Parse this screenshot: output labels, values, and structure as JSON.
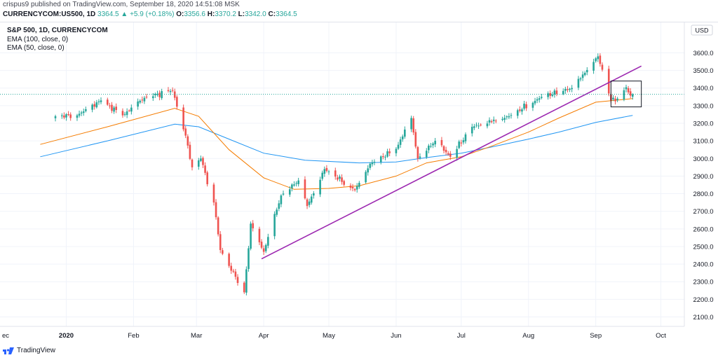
{
  "header": {
    "publish_line": "crispus9 published on TradingView.com, September 18, 2020 14:51:08 MSK",
    "symbol": "CURRENCYCOM:US500, 1D",
    "last": "3364.5",
    "change_arrow": "▲",
    "change": "+5.9 (+0.18%)",
    "o_label": "O:",
    "o_value": "3356.6",
    "h_label": "H:",
    "h_value": "3370.2",
    "l_label": "L:",
    "l_value": "3342.0",
    "c_label": "C:",
    "c_value": "3364.5"
  },
  "legend": {
    "title": "S&P 500, 1D, CURRENCYCOM",
    "ema1": "EMA (100, close, 0)",
    "ema2": "EMA (50, close, 0)"
  },
  "footer": {
    "brand": "TradingView"
  },
  "colors": {
    "up": "#26a69a",
    "down": "#ef5350",
    "ema100": "#2196f3",
    "ema50": "#f57c00",
    "trendline": "#9c27b0",
    "last_price_line": "#26a69a"
  },
  "chart_data": {
    "type": "candlestick",
    "title": "S&P 500, 1D, CURRENCYCOM",
    "currency": "USD",
    "x_ticks": [
      "ec",
      "2020",
      "Feb",
      "Mar",
      "Apr",
      "May",
      "Jun",
      "Jul",
      "Aug",
      "Sep",
      "Oct"
    ],
    "y_ticks": [
      2100,
      2200,
      2300,
      2400,
      2500,
      2600,
      2700,
      2800,
      2900,
      3000,
      3100,
      3200,
      3300,
      3400,
      3500,
      3600
    ],
    "ylim": [
      2060,
      3670
    ],
    "last_price": 3364.5,
    "grid": true,
    "series": [
      {
        "name": "S&P 500",
        "kind": "candles",
        "close_anchors": [
          [
            "2019-12-27",
            3240
          ],
          [
            "2020-01-06",
            3245
          ],
          [
            "2020-01-17",
            3330
          ],
          [
            "2020-01-27",
            3245
          ],
          [
            "2020-02-06",
            3345
          ],
          [
            "2020-02-19",
            3386
          ],
          [
            "2020-02-25",
            3130
          ],
          [
            "2020-02-28",
            2950
          ],
          [
            "2020-03-03",
            3000
          ],
          [
            "2020-03-09",
            2750
          ],
          [
            "2020-03-12",
            2480
          ],
          [
            "2020-03-16",
            2390
          ],
          [
            "2020-03-23",
            2240
          ],
          [
            "2020-03-26",
            2630
          ],
          [
            "2020-04-01",
            2470
          ],
          [
            "2020-04-09",
            2790
          ],
          [
            "2020-04-17",
            2875
          ],
          [
            "2020-04-21",
            2730
          ],
          [
            "2020-04-29",
            2940
          ],
          [
            "2020-05-13",
            2820
          ],
          [
            "2020-05-20",
            2970
          ],
          [
            "2020-06-01",
            3055
          ],
          [
            "2020-06-08",
            3230
          ],
          [
            "2020-06-11",
            3000
          ],
          [
            "2020-06-19",
            3100
          ],
          [
            "2020-06-26",
            3010
          ],
          [
            "2020-07-06",
            3180
          ],
          [
            "2020-07-23",
            3240
          ],
          [
            "2020-08-07",
            3350
          ],
          [
            "2020-08-21",
            3400
          ],
          [
            "2020-09-02",
            3580
          ],
          [
            "2020-09-08",
            3330
          ],
          [
            "2020-09-11",
            3340
          ],
          [
            "2020-09-15",
            3405
          ],
          [
            "2020-09-17",
            3357
          ],
          [
            "2020-09-18",
            3364.5
          ]
        ]
      },
      {
        "name": "EMA (100, close, 0)",
        "kind": "line",
        "points": [
          [
            "2019-12-20",
            3010
          ],
          [
            "2020-01-20",
            3100
          ],
          [
            "2020-02-20",
            3195
          ],
          [
            "2020-03-02",
            3180
          ],
          [
            "2020-03-16",
            3110
          ],
          [
            "2020-04-01",
            3030
          ],
          [
            "2020-04-20",
            2990
          ],
          [
            "2020-05-15",
            2975
          ],
          [
            "2020-06-01",
            2980
          ],
          [
            "2020-06-15",
            3005
          ],
          [
            "2020-07-01",
            3030
          ],
          [
            "2020-07-15",
            3065
          ],
          [
            "2020-08-01",
            3110
          ],
          [
            "2020-08-15",
            3150
          ],
          [
            "2020-09-01",
            3205
          ],
          [
            "2020-09-18",
            3245
          ]
        ]
      },
      {
        "name": "EMA (50, close, 0)",
        "kind": "line",
        "points": [
          [
            "2019-12-20",
            3080
          ],
          [
            "2020-01-20",
            3180
          ],
          [
            "2020-02-20",
            3285
          ],
          [
            "2020-03-02",
            3240
          ],
          [
            "2020-03-16",
            3050
          ],
          [
            "2020-04-01",
            2890
          ],
          [
            "2020-04-15",
            2825
          ],
          [
            "2020-05-01",
            2830
          ],
          [
            "2020-05-15",
            2845
          ],
          [
            "2020-06-01",
            2900
          ],
          [
            "2020-06-15",
            2975
          ],
          [
            "2020-07-01",
            3010
          ],
          [
            "2020-07-15",
            3070
          ],
          [
            "2020-08-01",
            3150
          ],
          [
            "2020-08-15",
            3230
          ],
          [
            "2020-09-01",
            3320
          ],
          [
            "2020-09-18",
            3340
          ]
        ]
      },
      {
        "name": "trendline",
        "kind": "line",
        "points": [
          [
            "2020-03-31",
            2430
          ],
          [
            "2020-09-22",
            3525
          ]
        ]
      }
    ],
    "annotations": [
      {
        "type": "rectangle",
        "x": [
          "2020-09-08",
          "2020-09-22"
        ],
        "y": [
          3293,
          3440
        ]
      }
    ]
  }
}
